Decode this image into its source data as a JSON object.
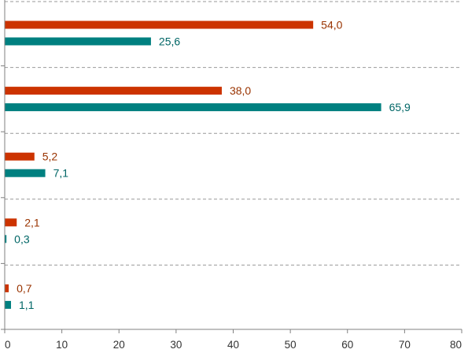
{
  "chart_data": {
    "type": "bar",
    "orientation": "horizontal",
    "categories": [
      "",
      "",
      "",
      "",
      ""
    ],
    "series": [
      {
        "color": "#cc3300",
        "values": [
          54.0,
          38.0,
          5.2,
          2.1,
          0.7
        ],
        "labels": [
          "54,0",
          "38,0",
          "5,2",
          "2,1",
          "0,7"
        ]
      },
      {
        "color": "#008080",
        "values": [
          25.6,
          65.9,
          7.1,
          0.3,
          1.1
        ],
        "labels": [
          "25,6",
          "65,9",
          "7,1",
          "0,3",
          "1,1"
        ]
      }
    ],
    "xlim": [
      0,
      80
    ],
    "xticks": [
      0,
      10,
      20,
      30,
      40,
      50,
      60,
      70,
      80
    ],
    "xtick_labels": [
      "0",
      "10",
      "20",
      "30",
      "40",
      "50",
      "60",
      "70",
      "80"
    ],
    "grid": "dashed horizontal separators between groups",
    "legend": "none"
  }
}
